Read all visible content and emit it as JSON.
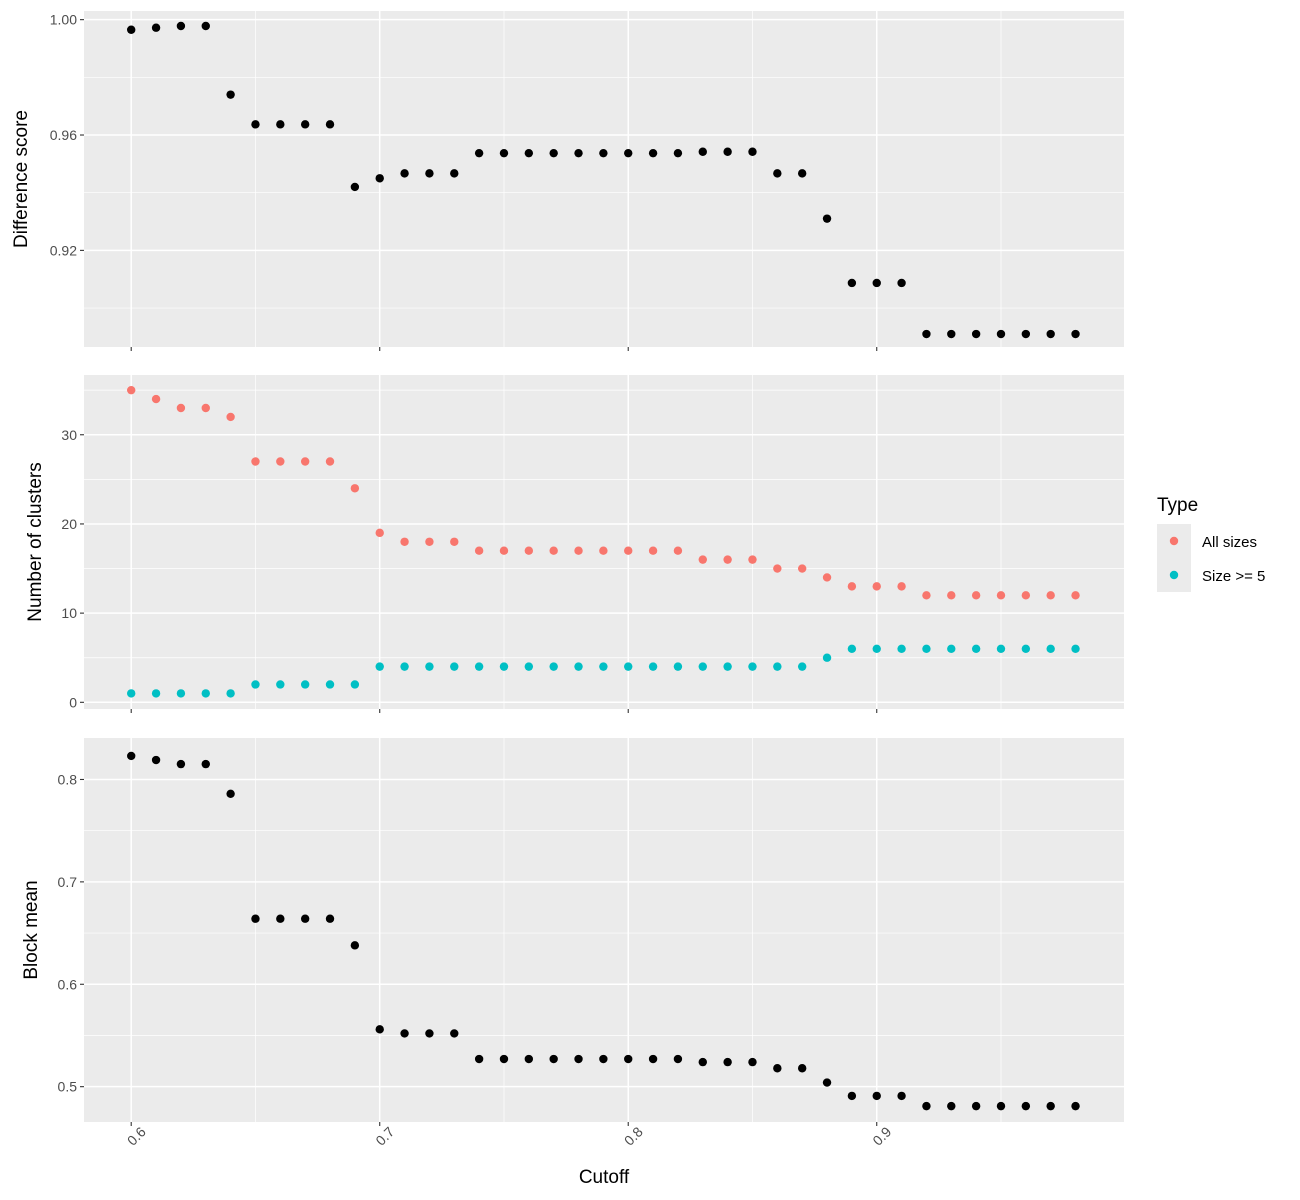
{
  "chart_data": {
    "type": "scatter",
    "x_axis": {
      "label": "Cutoff",
      "range": [
        0.581,
        0.9995
      ],
      "ticks": [
        0.6,
        0.7,
        0.8,
        0.9
      ],
      "tick_labels": [
        "0.6",
        "0.7",
        "0.8",
        "0.9"
      ]
    },
    "x": [
      0.6,
      0.61,
      0.62,
      0.63,
      0.64,
      0.65,
      0.66,
      0.67,
      0.68,
      0.69,
      0.7,
      0.71,
      0.72,
      0.73,
      0.74,
      0.75,
      0.76,
      0.77,
      0.78,
      0.79,
      0.8,
      0.81,
      0.82,
      0.83,
      0.84,
      0.85,
      0.86,
      0.87,
      0.88,
      0.89,
      0.9,
      0.91,
      0.92,
      0.93,
      0.94,
      0.95,
      0.96,
      0.97,
      0.98
    ],
    "grid": true,
    "legend": {
      "title": "Type",
      "position": "right",
      "entries": [
        {
          "label": "All sizes",
          "color": "#F8766D"
        },
        {
          "label": "Size >= 5",
          "color": "#00BFC4"
        }
      ]
    },
    "panels": [
      {
        "ylabel": "Difference score",
        "ylim": [
          0.8865,
          1.003
        ],
        "y_ticks": [
          0.92,
          0.96,
          1.0
        ],
        "y_tick_labels": [
          "0.92",
          "0.96",
          "1.00"
        ],
        "series": [
          {
            "color": "#000000",
            "values": [
              0.9965,
              0.9972,
              0.9978,
              0.9978,
              0.974,
              0.9637,
              0.9637,
              0.9637,
              0.9637,
              0.942,
              0.945,
              0.9467,
              0.9467,
              0.9467,
              0.9537,
              0.9537,
              0.9537,
              0.9537,
              0.9537,
              0.9537,
              0.9537,
              0.9537,
              0.9537,
              0.9542,
              0.9542,
              0.9542,
              0.9467,
              0.9467,
              0.931,
              0.9087,
              0.9087,
              0.9087,
              0.891,
              0.891,
              0.891,
              0.891,
              0.891,
              0.891,
              0.891
            ]
          }
        ]
      },
      {
        "ylabel": "Number of clusters",
        "ylim": [
          -0.75,
          36.7
        ],
        "y_ticks": [
          0,
          10,
          20,
          30
        ],
        "y_tick_labels": [
          "0",
          "10",
          "20",
          "30"
        ],
        "series": [
          {
            "name": "All sizes",
            "color": "#F8766D",
            "values": [
              35,
              34,
              33,
              33,
              32,
              27,
              27,
              27,
              27,
              24,
              19,
              18,
              18,
              18,
              17,
              17,
              17,
              17,
              17,
              17,
              17,
              17,
              17,
              16,
              16,
              16,
              15,
              15,
              14,
              13,
              13,
              13,
              12,
              12,
              12,
              12,
              12,
              12,
              12
            ]
          },
          {
            "name": "Size >= 5",
            "color": "#00BFC4",
            "values": [
              1,
              1,
              1,
              1,
              1,
              2,
              2,
              2,
              2,
              2,
              4,
              4,
              4,
              4,
              4,
              4,
              4,
              4,
              4,
              4,
              4,
              4,
              4,
              4,
              4,
              4,
              4,
              4,
              5,
              6,
              6,
              6,
              6,
              6,
              6,
              6,
              6,
              6,
              6
            ]
          }
        ]
      },
      {
        "ylabel": "Block mean",
        "ylim": [
          0.4655,
          0.8405
        ],
        "y_ticks": [
          0.5,
          0.6,
          0.7,
          0.8
        ],
        "y_tick_labels": [
          "0.5",
          "0.6",
          "0.7",
          "0.8"
        ],
        "series": [
          {
            "color": "#000000",
            "values": [
              0.823,
              0.819,
              0.815,
              0.815,
              0.786,
              0.664,
              0.664,
              0.664,
              0.664,
              0.638,
              0.556,
              0.552,
              0.552,
              0.552,
              0.527,
              0.527,
              0.527,
              0.527,
              0.527,
              0.527,
              0.527,
              0.527,
              0.527,
              0.524,
              0.524,
              0.524,
              0.518,
              0.518,
              0.504,
              0.491,
              0.491,
              0.491,
              0.481,
              0.481,
              0.481,
              0.481,
              0.481,
              0.481,
              0.481
            ]
          }
        ]
      }
    ]
  }
}
